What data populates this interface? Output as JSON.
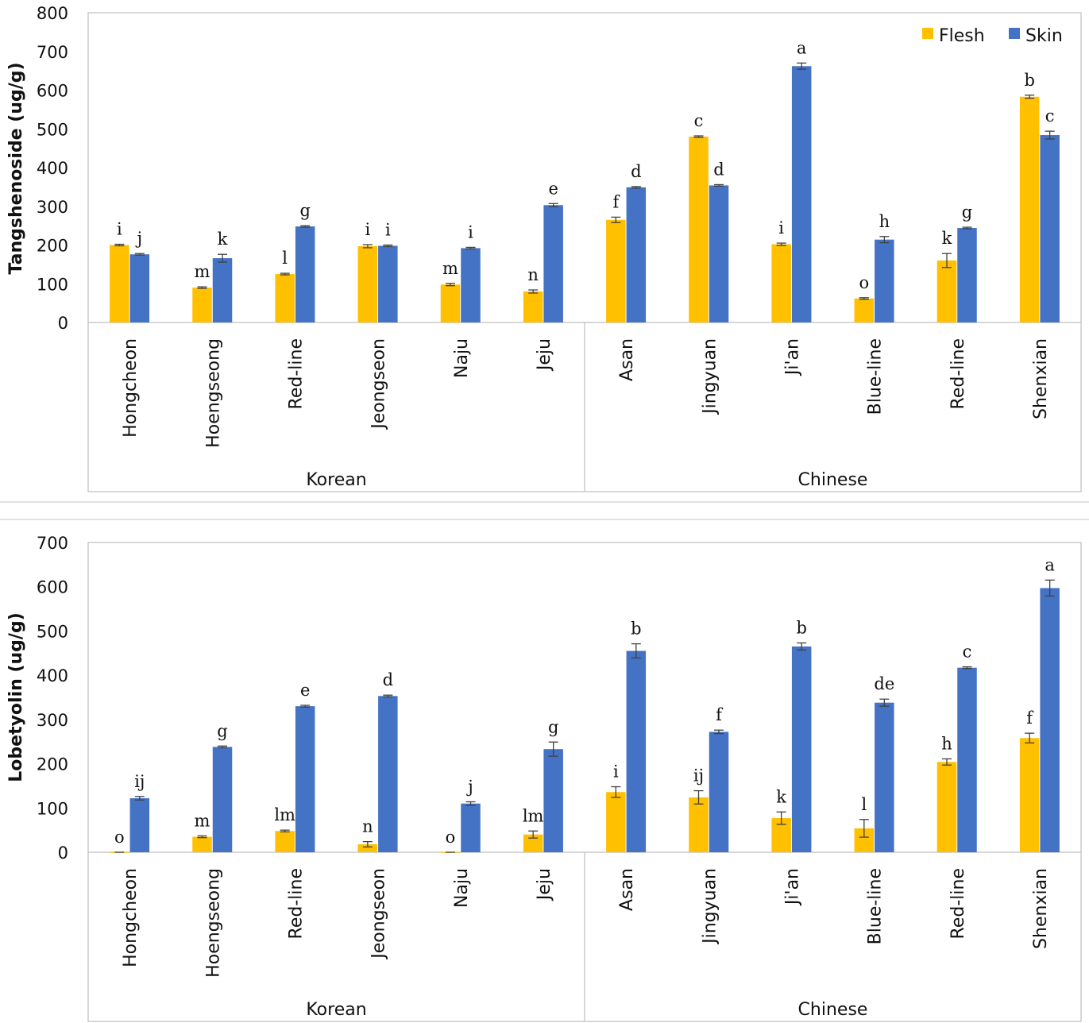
{
  "colors": {
    "flesh": "#FFC000",
    "skin": "#4472C4",
    "axis": "#BFBFBF",
    "errorbar": "#404040"
  },
  "legend": {
    "placement": "top-right",
    "entries": [
      "Flesh",
      "Skin"
    ]
  },
  "chart_data": [
    {
      "type": "bar",
      "title": "",
      "ylabel": "Tangshenoside (ug/g)",
      "ylim": [
        0,
        800
      ],
      "yticks": [
        "0",
        "100",
        "200",
        "300",
        "400",
        "500",
        "600",
        "700",
        "800"
      ],
      "grid": false,
      "categories": [
        "Hongcheon",
        "Hoengseong",
        "Red-line",
        "Jeongseon",
        "Naju",
        "Jeju",
        "Asan",
        "Jingyuan",
        "Ji'an",
        "Blue-line",
        "Red-line",
        "Shenxian"
      ],
      "groups": [
        {
          "label": "Korean",
          "count": 6
        },
        {
          "label": "Chinese",
          "count": 6
        }
      ],
      "series": [
        {
          "name": "Flesh",
          "values": [
            200,
            90,
            125,
            197,
            98,
            80,
            265,
            480,
            202,
            62,
            160,
            583
          ],
          "errors": [
            2,
            2,
            2,
            4,
            3,
            4,
            7,
            2,
            3,
            2,
            18,
            4
          ],
          "letters": [
            "i",
            "m",
            "l",
            "i",
            "m",
            "n",
            "f",
            "c",
            "i",
            "o",
            "k",
            "b"
          ]
        },
        {
          "name": "Skin",
          "values": [
            176,
            166,
            248,
            198,
            192,
            303,
            349,
            354,
            662,
            214,
            244,
            484
          ],
          "errors": [
            2,
            10,
            2,
            2,
            2,
            4,
            2,
            2,
            8,
            8,
            2,
            10
          ],
          "letters": [
            "j",
            "k",
            "g",
            "i",
            "i",
            "e",
            "d",
            "d",
            "a",
            "h",
            "g",
            "c"
          ]
        }
      ]
    },
    {
      "type": "bar",
      "title": "",
      "ylabel": "Lobetyolin (ug/g)",
      "ylim": [
        0,
        700
      ],
      "yticks": [
        "0",
        "100",
        "200",
        "300",
        "400",
        "500",
        "600",
        "700"
      ],
      "grid": false,
      "categories": [
        "Hongcheon",
        "Hoengseong",
        "Red-line",
        "Jeongseon",
        "Naju",
        "Jeju",
        "Asan",
        "Jingyuan",
        "Ji'an",
        "Blue-line",
        "Red-line",
        "Shenxian"
      ],
      "groups": [
        {
          "label": "Korean",
          "count": 6
        },
        {
          "label": "Chinese",
          "count": 6
        }
      ],
      "series": [
        {
          "name": "Flesh",
          "values": [
            0,
            35,
            48,
            18,
            0,
            40,
            136,
            124,
            77,
            54,
            204,
            258
          ],
          "errors": [
            0,
            2,
            2,
            6,
            0,
            8,
            12,
            15,
            14,
            20,
            7,
            11
          ],
          "letters": [
            "o",
            "m",
            "lm",
            "n",
            "o",
            "lm",
            "i",
            "ij",
            "k",
            "l",
            "h",
            "f"
          ]
        },
        {
          "name": "Skin",
          "values": [
            122,
            238,
            330,
            353,
            110,
            233,
            455,
            272,
            465,
            338,
            417,
            597
          ],
          "errors": [
            4,
            2,
            2,
            2,
            4,
            16,
            16,
            4,
            8,
            8,
            2,
            18
          ],
          "letters": [
            "ij",
            "g",
            "e",
            "d",
            "j",
            "g",
            "b",
            "f",
            "b",
            "de",
            "c",
            "a"
          ]
        }
      ]
    }
  ]
}
